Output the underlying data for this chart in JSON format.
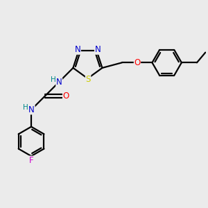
{
  "bg_color": "#ebebeb",
  "bond_width": 1.6,
  "figsize": [
    3.0,
    3.0
  ],
  "dpi": 100,
  "atom_colors": {
    "N": "#0000cc",
    "S": "#cccc00",
    "O": "#ff0000",
    "F": "#cc00cc",
    "H": "#008888",
    "C": "#000000"
  },
  "font_size": 8.5
}
